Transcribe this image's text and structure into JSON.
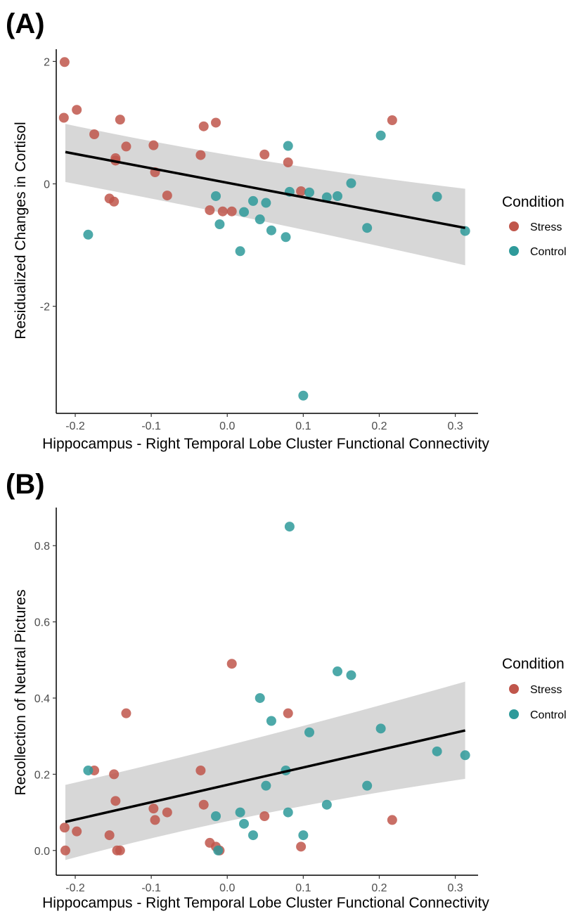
{
  "chart_data": [
    {
      "type": "scatter",
      "panel_label": "(A)",
      "xlabel": "Hippocampus - Right Temporal Lobe Cluster Functional Connectivity",
      "ylabel": "Residualized Changes in Cortisol",
      "xlim": [
        -0.225,
        0.33
      ],
      "ylim": [
        -3.75,
        2.2
      ],
      "xticks": [
        -0.2,
        -0.1,
        0.0,
        0.1,
        0.2,
        0.3
      ],
      "xtick_labels": [
        "-0.2",
        "-0.1",
        "0.0",
        "0.1",
        "0.2",
        "0.3"
      ],
      "yticks": [
        -2,
        0,
        2
      ],
      "ytick_labels": [
        "-2",
        "0",
        "2"
      ],
      "grid": false,
      "legend": {
        "title": "Condition",
        "position": "right",
        "entries": [
          "Stress",
          "Control"
        ]
      },
      "colors": {
        "Stress": "#c0564b",
        "Control": "#2e9a9a"
      },
      "regression": {
        "x": [
          -0.213,
          0.313
        ],
        "y": [
          0.52,
          -0.72
        ],
        "ci_lower": [
          0.03,
          -1.33
        ],
        "ci_upper": [
          0.98,
          -0.08
        ]
      },
      "series": [
        {
          "name": "Stress",
          "x": [
            -0.214,
            -0.215,
            -0.198,
            -0.175,
            -0.141,
            -0.133,
            -0.147,
            -0.147,
            -0.155,
            -0.149,
            -0.097,
            -0.095,
            -0.079,
            -0.035,
            -0.031,
            -0.023,
            -0.015,
            -0.006,
            0.006,
            0.049,
            0.08,
            0.097,
            0.217
          ],
          "y": [
            1.99,
            1.08,
            1.21,
            0.81,
            1.05,
            0.61,
            0.42,
            0.38,
            -0.24,
            -0.29,
            0.63,
            0.19,
            -0.19,
            0.47,
            0.94,
            -0.43,
            1.0,
            -0.45,
            -0.45,
            0.48,
            0.35,
            -0.12,
            1.04
          ]
        },
        {
          "name": "Control",
          "x": [
            -0.183,
            -0.015,
            -0.01,
            0.017,
            0.022,
            0.034,
            0.043,
            0.051,
            0.058,
            0.077,
            0.08,
            0.082,
            0.1,
            0.108,
            0.131,
            0.145,
            0.163,
            0.184,
            0.202,
            0.276,
            0.313
          ],
          "y": [
            -0.83,
            -0.2,
            -0.66,
            -1.1,
            -0.46,
            -0.28,
            -0.58,
            -0.31,
            -0.76,
            -0.87,
            0.62,
            -0.13,
            -3.46,
            -0.14,
            -0.22,
            -0.2,
            0.01,
            -0.72,
            0.79,
            -0.21,
            -0.77
          ]
        }
      ]
    },
    {
      "type": "scatter",
      "panel_label": "(B)",
      "xlabel": "Hippocampus - Right Temporal Lobe Cluster Functional Connectivity",
      "ylabel": "Recollection of Neutral Pictures",
      "xlim": [
        -0.225,
        0.33
      ],
      "ylim": [
        -0.065,
        0.9
      ],
      "xticks": [
        -0.2,
        -0.1,
        0.0,
        0.1,
        0.2,
        0.3
      ],
      "xtick_labels": [
        "-0.2",
        "-0.1",
        "0.0",
        "0.1",
        "0.2",
        "0.3"
      ],
      "yticks": [
        0.0,
        0.2,
        0.4,
        0.6,
        0.8
      ],
      "ytick_labels": [
        "0.0",
        "0.2",
        "0.4",
        "0.6",
        "0.8"
      ],
      "grid": false,
      "legend": {
        "title": "Condition",
        "position": "right",
        "entries": [
          "Stress",
          "Control"
        ]
      },
      "colors": {
        "Stress": "#c0564b",
        "Control": "#2e9a9a"
      },
      "regression": {
        "x": [
          -0.213,
          0.313
        ],
        "y": [
          0.075,
          0.315
        ],
        "ci_lower": [
          -0.025,
          0.188
        ],
        "ci_upper": [
          0.172,
          0.443
        ]
      },
      "series": [
        {
          "name": "Stress",
          "x": [
            -0.214,
            -0.213,
            -0.198,
            -0.175,
            -0.155,
            -0.149,
            -0.147,
            -0.145,
            -0.141,
            -0.133,
            -0.097,
            -0.095,
            -0.079,
            -0.035,
            -0.031,
            -0.023,
            -0.015,
            -0.01,
            0.006,
            0.049,
            0.08,
            0.097,
            0.217
          ],
          "y": [
            0.06,
            0.0,
            0.05,
            0.21,
            0.04,
            0.2,
            0.13,
            0.0,
            0.0,
            0.36,
            0.11,
            0.08,
            0.1,
            0.21,
            0.12,
            0.02,
            0.01,
            0.0,
            0.49,
            0.09,
            0.36,
            0.01,
            0.08
          ]
        },
        {
          "name": "Control",
          "x": [
            -0.183,
            -0.015,
            -0.012,
            0.017,
            0.022,
            0.034,
            0.043,
            0.051,
            0.058,
            0.077,
            0.08,
            0.082,
            0.1,
            0.108,
            0.131,
            0.145,
            0.163,
            0.184,
            0.202,
            0.276,
            0.313
          ],
          "y": [
            0.21,
            0.09,
            0.0,
            0.1,
            0.07,
            0.04,
            0.4,
            0.17,
            0.34,
            0.21,
            0.1,
            0.85,
            0.04,
            0.31,
            0.12,
            0.47,
            0.46,
            0.17,
            0.32,
            0.26,
            0.25
          ]
        }
      ]
    }
  ]
}
